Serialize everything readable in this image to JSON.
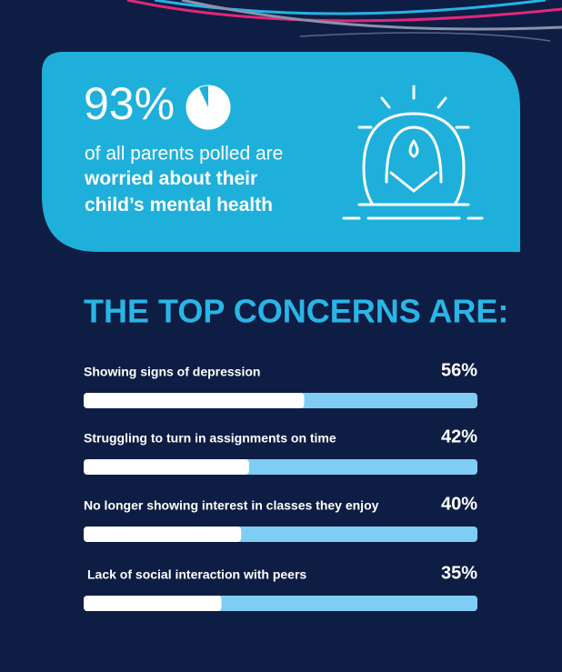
{
  "highlight": {
    "value": 93,
    "value_label": "93%",
    "text": "of all parents polled are",
    "emphasis": "worried about their child’s mental health"
  },
  "concerns": {
    "title": "THE TOP CONCERNS ARE:",
    "categories": [
      "Showing signs of depression",
      "Struggling to turn in assignments on time",
      "No longer showing interest in classes they enjoy",
      "Lack of social interaction with peers"
    ],
    "values": [
      56,
      42,
      40,
      35
    ],
    "value_labels": [
      "56%",
      "42%",
      "40%",
      "35%"
    ],
    "xlim": [
      0,
      100
    ],
    "color": "#ffffff",
    "track_color": "#7fcdf4"
  }
}
